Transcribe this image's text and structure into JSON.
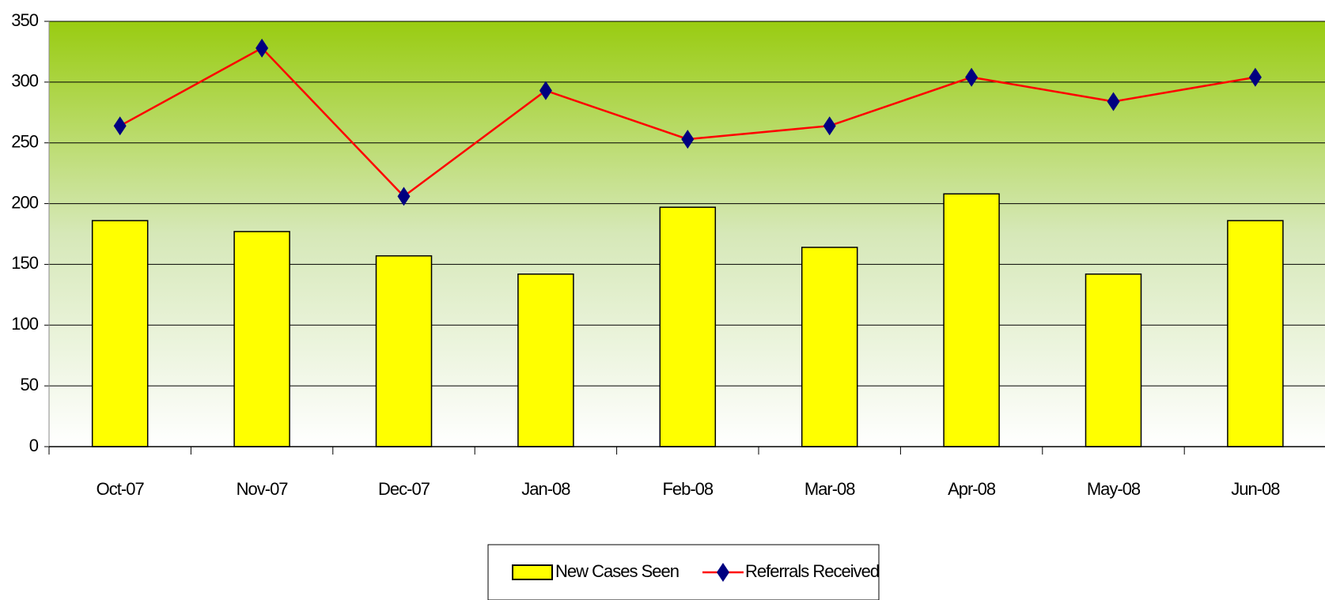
{
  "chart_data": {
    "type": "bar_line",
    "categories": [
      "Oct-07",
      "Nov-07",
      "Dec-07",
      "Jan-08",
      "Feb-08",
      "Mar-08",
      "Apr-08",
      "May-08",
      "Jun-08"
    ],
    "series": [
      {
        "name": "New Cases Seen",
        "type": "bar",
        "color": "#ffff00",
        "values": [
          186,
          177,
          157,
          142,
          197,
          164,
          208,
          142,
          186
        ]
      },
      {
        "name": "Referrals Received",
        "type": "line",
        "color": "#ff0000",
        "marker_color": "#000080",
        "values": [
          264,
          328,
          206,
          293,
          253,
          264,
          304,
          284,
          304
        ]
      }
    ],
    "ylim": [
      0,
      350
    ],
    "yticks": [
      0,
      50,
      100,
      150,
      200,
      250,
      300,
      350
    ],
    "grid": true,
    "legend": "bottom"
  }
}
